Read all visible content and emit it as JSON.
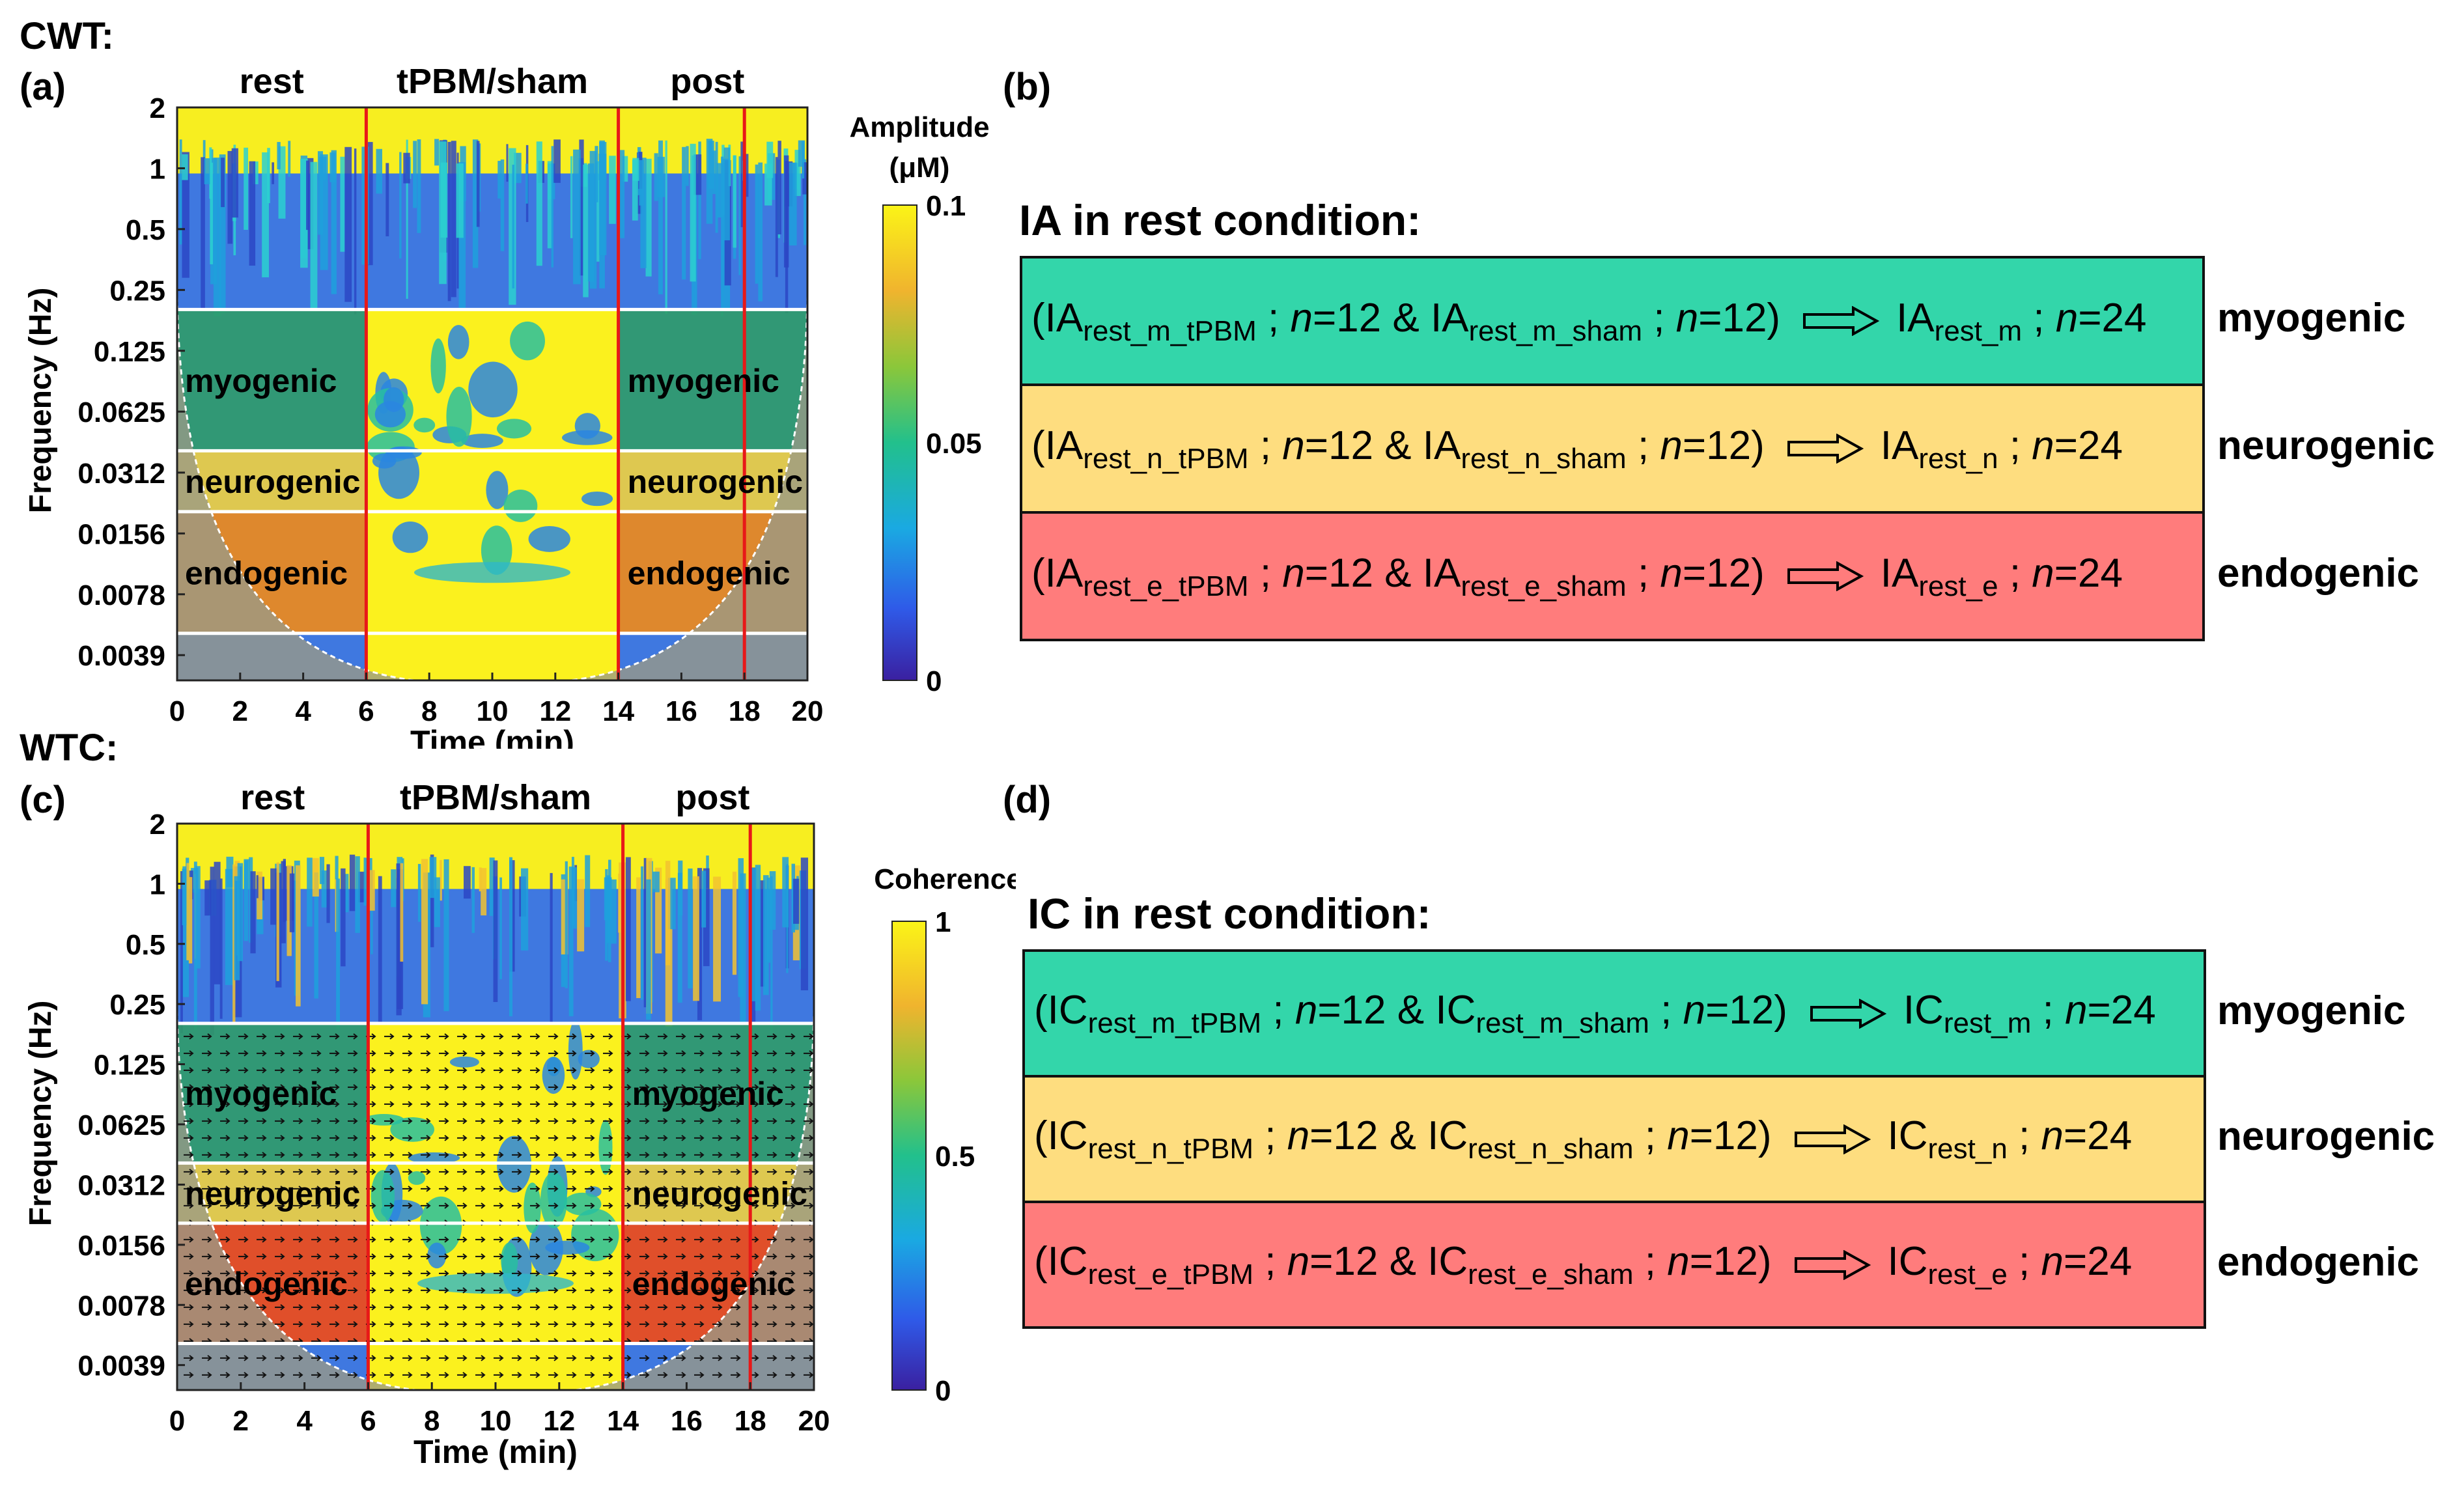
{
  "labels": {
    "cwt": "CWT:",
    "wtc": "WTC:",
    "panel_a": "(a)",
    "panel_b": "(b)",
    "panel_c": "(c)",
    "panel_d": "(d)"
  },
  "chart_data": [
    {
      "id": "a",
      "type": "heatmap",
      "method": "CWT",
      "xlabel": "Time (min)",
      "ylabel": "Frequency (Hz)",
      "xlim": [
        0,
        20
      ],
      "x_ticks": [
        "0",
        "2",
        "4",
        "6",
        "8",
        "10",
        "12",
        "14",
        "16",
        "18",
        "20"
      ],
      "y_ticks": [
        "2",
        "1",
        "0.5",
        "0.25",
        "0.125",
        "0.0625",
        "0.0312",
        "0.0156",
        "0.0078",
        "0.0039"
      ],
      "phase_labels": [
        "rest",
        "tPBM/sham",
        "post"
      ],
      "phase_boundaries_min": [
        6,
        14,
        18
      ],
      "band_boundaries_hz": [
        0.2,
        0.04,
        0.02,
        0.005
      ],
      "band_labels": [
        "myogenic",
        "neurogenic",
        "endogenic"
      ],
      "colorbar": {
        "title": "Amplitude (μM)",
        "ticks": [
          "0.1",
          "0.05",
          "0"
        ],
        "range": [
          0,
          0.1
        ]
      }
    },
    {
      "id": "c",
      "type": "heatmap",
      "method": "WTC",
      "xlabel": "Time (min)",
      "ylabel": "Frequency (Hz)",
      "xlim": [
        0,
        20
      ],
      "x_ticks": [
        "0",
        "2",
        "4",
        "6",
        "8",
        "10",
        "12",
        "14",
        "16",
        "18",
        "20"
      ],
      "y_ticks": [
        "2",
        "1",
        "0.5",
        "0.25",
        "0.125",
        "0.0625",
        "0.0312",
        "0.0156",
        "0.0078",
        "0.0039"
      ],
      "phase_labels": [
        "rest",
        "tPBM/sham",
        "post"
      ],
      "phase_boundaries_min": [
        6,
        14,
        18
      ],
      "band_boundaries_hz": [
        0.2,
        0.04,
        0.02,
        0.005
      ],
      "band_labels": [
        "myogenic",
        "neurogenic",
        "endogenic"
      ],
      "colorbar": {
        "title": "Coherence",
        "ticks": [
          "1",
          "0.5",
          "0"
        ],
        "range": [
          0,
          1
        ]
      }
    }
  ],
  "panel_b": {
    "title": "IA in rest condition:",
    "rows": [
      {
        "band": "myogenic",
        "color": "#33d6aa",
        "m": "IA",
        "s1": "rest_m_tPBM",
        "n1": "=12",
        "amp": "&",
        "s2": "rest_m_sham",
        "n2": "=12",
        "rs": "rest_m",
        "rn": "=24"
      },
      {
        "band": "neurogenic",
        "color": "#fedd7f",
        "m": "IA",
        "s1": "rest_n_tPBM",
        "n1": "=12",
        "amp": "&",
        "s2": "rest_n_sham",
        "n2": "=12",
        "rs": "rest_n",
        "rn": "=24"
      },
      {
        "band": "endogenic",
        "color": "#ff7c7c",
        "m": "IA",
        "s1": "rest_e_tPBM",
        "n1": "=12",
        "amp": "&",
        "s2": "rest_e_sham",
        "n2": "=12",
        "rs": "rest_e",
        "rn": "=24"
      }
    ]
  },
  "panel_d": {
    "title": "IC in rest condition:",
    "rows": [
      {
        "band": "myogenic",
        "color": "#33d6aa",
        "m": "IC",
        "s1": "rest_m_tPBM",
        "n1": "=12",
        "amp": "&",
        "s2": "rest_m_sham",
        "n2": "=12",
        "rs": "rest_m",
        "rn": "=24"
      },
      {
        "band": "neurogenic",
        "color": "#fedd7f",
        "m": "IC",
        "s1": "rest_n_tPBM",
        "n1": "=12",
        "amp": "&",
        "s2": "rest_n_sham",
        "n2": "=12",
        "rs": "rest_n",
        "rn": "=24"
      },
      {
        "band": "endogenic",
        "color": "#ff7c7c",
        "m": "IC",
        "s1": "rest_e_tPBM",
        "n1": "=12",
        "amp": "&",
        "s2": "rest_e_sham",
        "n2": "=12",
        "rs": "rest_e",
        "rn": "=24"
      }
    ]
  }
}
